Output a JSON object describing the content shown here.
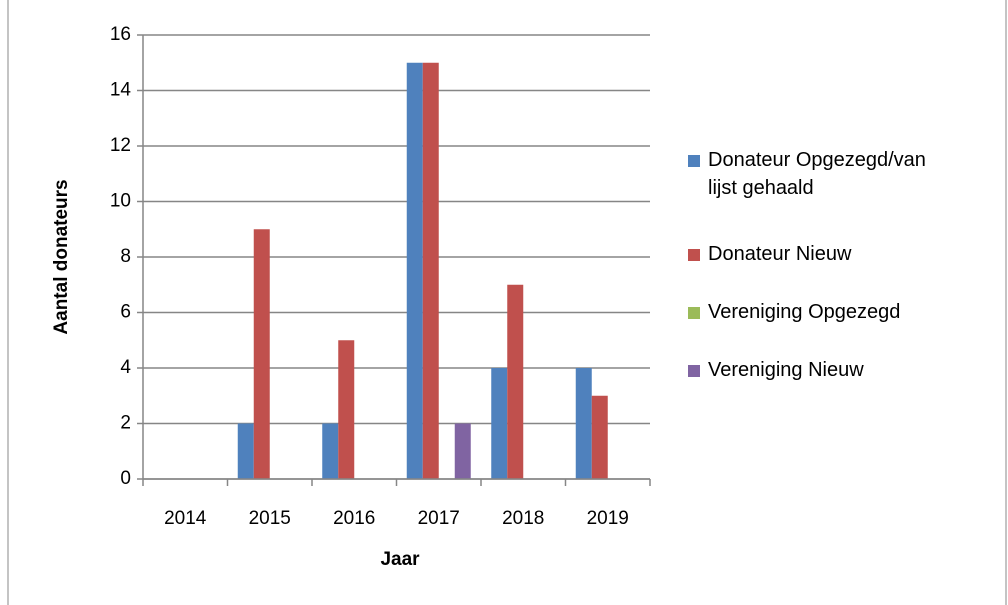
{
  "chart_data": {
    "type": "bar",
    "x_label": "Jaar",
    "y_label": "Aantal donateurs",
    "categories": [
      "2014",
      "2015",
      "2016",
      "2017",
      "2018",
      "2019"
    ],
    "series": [
      {
        "name": "Donateur Opgezegd/van lijst gehaald",
        "color": "#4f81bd",
        "values": [
          0,
          2,
          2,
          15,
          4,
          4
        ]
      },
      {
        "name": "Donateur Nieuw",
        "color": "#c0504d",
        "values": [
          0,
          9,
          5,
          15,
          7,
          3
        ]
      },
      {
        "name": "Vereniging Opgezegd",
        "color": "#9bbb59",
        "values": [
          0,
          0,
          0,
          0,
          0,
          0
        ]
      },
      {
        "name": "Vereniging Nieuw",
        "color": "#8064a2",
        "values": [
          0,
          0,
          0,
          2,
          0,
          0
        ]
      }
    ],
    "ylim": [
      0,
      16
    ],
    "yticks": [
      0,
      2,
      4,
      6,
      8,
      10,
      12,
      14,
      16
    ],
    "grid": true,
    "legend": "right"
  }
}
